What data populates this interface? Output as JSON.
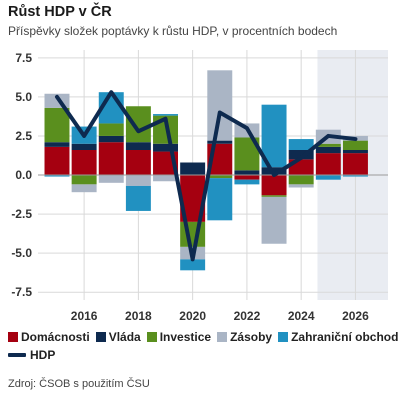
{
  "title": "Růst HDP v ČR",
  "subtitle": "Příspěvky složek poptávky k růstu HDP, v procentních bodech",
  "source": "Zdroj: ČSOB s použitím ČSU",
  "chart_data": {
    "type": "bar",
    "stacked": true,
    "x": [
      2015,
      2016,
      2017,
      2018,
      2019,
      2020,
      2021,
      2022,
      2023,
      2024,
      2025,
      2026
    ],
    "xticks": [
      "2016",
      "2018",
      "2020",
      "2022",
      "2024",
      "2026"
    ],
    "yticks": [
      "7.5",
      "5.0",
      "2.5",
      "0.0",
      "-2.5",
      "-5.0",
      "-7.5"
    ],
    "ylim": [
      -8,
      8
    ],
    "xlim": [
      2014.3,
      2027.2
    ],
    "forecast_from": 2024.6,
    "grid": true,
    "legend_position": "bottom",
    "series": [
      {
        "name": "Domácnosti",
        "color": "#a50010",
        "values": [
          1.8,
          1.6,
          2.1,
          1.6,
          1.5,
          -3.0,
          2.0,
          -0.3,
          -1.3,
          1.0,
          1.4,
          1.4
        ]
      },
      {
        "name": "Vláda",
        "color": "#0e2a4f",
        "values": [
          0.3,
          0.4,
          0.4,
          0.5,
          0.5,
          0.8,
          0.2,
          0.3,
          0.5,
          0.6,
          0.4,
          0.2
        ]
      },
      {
        "name": "Investice",
        "color": "#5a8f1e",
        "values": [
          2.2,
          -0.6,
          0.8,
          2.3,
          1.8,
          -1.6,
          -0.2,
          2.1,
          -0.1,
          -0.6,
          0.2,
          0.6
        ]
      },
      {
        "name": "Zásoby",
        "color": "#aab5c5",
        "values": [
          0.9,
          -0.5,
          -0.5,
          -0.7,
          -0.4,
          -0.8,
          4.5,
          0.9,
          -3.0,
          -0.2,
          0.9,
          0.3
        ]
      },
      {
        "name": "Zahraniční obchod",
        "color": "#2191c1",
        "values": [
          -0.1,
          1.1,
          2.0,
          -1.6,
          0.1,
          -0.7,
          -2.7,
          -0.3,
          4.0,
          0.7,
          -0.3,
          -0.1
        ]
      }
    ],
    "line": {
      "name": "HDP",
      "color": "#0e2a4f",
      "values": [
        5.0,
        2.5,
        5.3,
        2.8,
        3.6,
        -5.4,
        4.0,
        3.0,
        0.0,
        1.1,
        2.5,
        2.3
      ]
    }
  }
}
